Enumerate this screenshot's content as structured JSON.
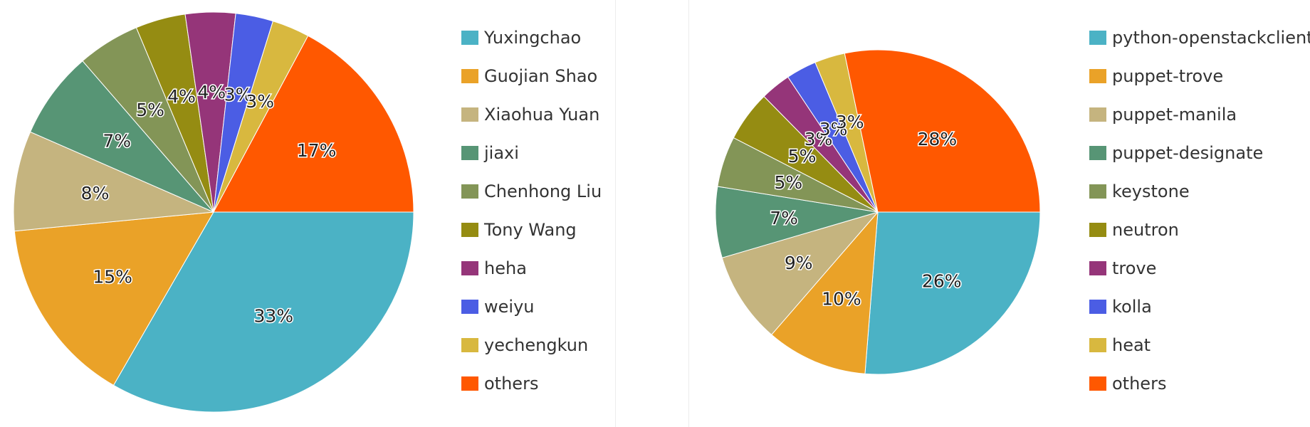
{
  "chart_data": [
    {
      "type": "pie",
      "labels": [
        "Yuxingchao",
        "Guojian Shao",
        "Xiaohua Yuan",
        "jiaxi",
        "Chenhong Liu",
        "Tony Wang",
        "heha",
        "weiyu",
        "yechengkun",
        "others"
      ],
      "values": [
        33,
        15,
        8,
        7,
        5,
        4,
        4,
        3,
        3,
        17
      ],
      "value_labels": [
        "33%",
        "15%",
        "8%",
        "7%",
        "5%",
        "4%",
        "4%",
        "3%",
        "3%",
        "17%"
      ],
      "colors": [
        "#4bb2c5",
        "#eaa228",
        "#c5b47f",
        "#579575",
        "#839557",
        "#958c12",
        "#953579",
        "#4b5de4",
        "#d8b83f",
        "#ff5800"
      ],
      "legend_position": "right"
    },
    {
      "type": "pie",
      "labels": [
        "python-openstackclient",
        "puppet-trove",
        "puppet-manila",
        "puppet-designate",
        "keystone",
        "neutron",
        "trove",
        "kolla",
        "heat",
        "others"
      ],
      "values": [
        26,
        10,
        9,
        7,
        5,
        5,
        3,
        3,
        3,
        28
      ],
      "value_labels": [
        "26%",
        "10%",
        "9%",
        "7%",
        "5%",
        "5%",
        "3%",
        "3%",
        "3%",
        "28%"
      ],
      "colors": [
        "#4bb2c5",
        "#eaa228",
        "#c5b47f",
        "#579575",
        "#839557",
        "#958c12",
        "#953579",
        "#4b5de4",
        "#d8b83f",
        "#ff5800"
      ],
      "legend_position": "right"
    }
  ]
}
